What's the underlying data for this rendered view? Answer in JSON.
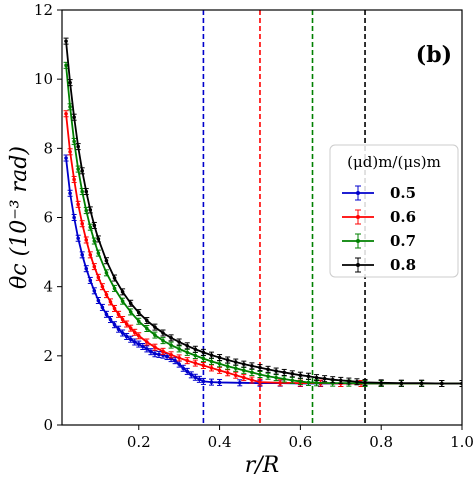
{
  "chart_data": {
    "type": "line",
    "panel_label": "(b)",
    "xlabel": "r/R",
    "ylabel": "θc (10⁻³ rad)",
    "xlim": [
      0.01,
      1.0
    ],
    "ylim": [
      0,
      12
    ],
    "x_ticks": [
      0.2,
      0.4,
      0.6,
      0.8,
      1.0
    ],
    "x_tick_labels": [
      "0.2",
      "0.4",
      "0.6",
      "0.8",
      "1.0"
    ],
    "y_ticks": [
      0,
      2,
      4,
      6,
      8,
      10,
      12
    ],
    "y_tick_labels": [
      "0",
      "2",
      "4",
      "6",
      "8",
      "10",
      "12"
    ],
    "legend": {
      "title": "(μd)m/(μs)m",
      "placement": "center-right"
    },
    "series": [
      {
        "name": "0.5",
        "color": "#0000cc",
        "x": [
          0.02,
          0.03,
          0.04,
          0.05,
          0.06,
          0.07,
          0.08,
          0.09,
          0.1,
          0.11,
          0.12,
          0.13,
          0.14,
          0.15,
          0.16,
          0.17,
          0.18,
          0.19,
          0.2,
          0.21,
          0.22,
          0.23,
          0.24,
          0.25,
          0.26,
          0.27,
          0.28,
          0.29,
          0.3,
          0.31,
          0.32,
          0.33,
          0.34,
          0.35,
          0.36,
          0.38,
          0.4,
          0.45,
          0.5,
          0.55,
          0.6,
          0.65,
          0.7,
          0.75,
          0.8,
          0.85,
          0.9,
          0.95,
          1.0
        ],
        "y": [
          7.72,
          6.7,
          6.0,
          5.4,
          4.92,
          4.52,
          4.18,
          3.88,
          3.6,
          3.4,
          3.2,
          3.05,
          2.9,
          2.77,
          2.66,
          2.56,
          2.48,
          2.4,
          2.34,
          2.27,
          2.2,
          2.12,
          2.06,
          2.04,
          2.02,
          1.98,
          1.92,
          1.86,
          1.76,
          1.64,
          1.55,
          1.45,
          1.38,
          1.32,
          1.26,
          1.24,
          1.23,
          1.22,
          1.21,
          1.21,
          1.2,
          1.2,
          1.2,
          1.2,
          1.2,
          1.2,
          1.2,
          1.2,
          1.2
        ]
      },
      {
        "name": "0.6",
        "color": "#ff0000",
        "x": [
          0.02,
          0.03,
          0.04,
          0.05,
          0.06,
          0.07,
          0.08,
          0.09,
          0.1,
          0.11,
          0.12,
          0.13,
          0.14,
          0.15,
          0.16,
          0.17,
          0.18,
          0.19,
          0.2,
          0.22,
          0.24,
          0.26,
          0.28,
          0.3,
          0.32,
          0.34,
          0.36,
          0.38,
          0.4,
          0.42,
          0.44,
          0.46,
          0.48,
          0.5,
          0.55,
          0.6,
          0.65,
          0.7,
          0.75,
          0.8,
          0.85,
          0.9,
          0.95,
          1.0
        ],
        "y": [
          9.0,
          7.9,
          7.1,
          6.38,
          5.82,
          5.35,
          4.92,
          4.58,
          4.27,
          4.0,
          3.77,
          3.56,
          3.37,
          3.2,
          3.05,
          2.92,
          2.8,
          2.68,
          2.58,
          2.4,
          2.25,
          2.13,
          2.03,
          1.94,
          1.86,
          1.79,
          1.72,
          1.65,
          1.58,
          1.51,
          1.44,
          1.37,
          1.3,
          1.24,
          1.22,
          1.21,
          1.21,
          1.2,
          1.2,
          1.2,
          1.2,
          1.2,
          1.2,
          1.2
        ]
      },
      {
        "name": "0.7",
        "color": "#008000",
        "x": [
          0.02,
          0.03,
          0.04,
          0.05,
          0.06,
          0.07,
          0.08,
          0.09,
          0.1,
          0.12,
          0.14,
          0.16,
          0.18,
          0.2,
          0.22,
          0.24,
          0.26,
          0.28,
          0.3,
          0.32,
          0.34,
          0.36,
          0.38,
          0.4,
          0.42,
          0.44,
          0.46,
          0.48,
          0.5,
          0.52,
          0.54,
          0.56,
          0.58,
          0.6,
          0.62,
          0.64,
          0.68,
          0.72,
          0.76,
          0.8,
          0.85,
          0.9,
          0.95,
          1.0
        ],
        "y": [
          10.4,
          9.2,
          8.2,
          7.4,
          6.75,
          6.2,
          5.72,
          5.32,
          4.97,
          4.4,
          3.95,
          3.58,
          3.27,
          3.0,
          2.79,
          2.6,
          2.44,
          2.31,
          2.2,
          2.1,
          2.01,
          1.92,
          1.84,
          1.77,
          1.7,
          1.64,
          1.58,
          1.52,
          1.46,
          1.41,
          1.37,
          1.33,
          1.29,
          1.26,
          1.23,
          1.22,
          1.21,
          1.21,
          1.2,
          1.2,
          1.2,
          1.2,
          1.2,
          1.2
        ]
      },
      {
        "name": "0.8",
        "color": "#000000",
        "x": [
          0.02,
          0.03,
          0.04,
          0.05,
          0.06,
          0.07,
          0.08,
          0.09,
          0.1,
          0.12,
          0.14,
          0.16,
          0.18,
          0.2,
          0.22,
          0.24,
          0.26,
          0.28,
          0.3,
          0.32,
          0.34,
          0.36,
          0.38,
          0.4,
          0.42,
          0.44,
          0.46,
          0.48,
          0.5,
          0.52,
          0.54,
          0.56,
          0.58,
          0.6,
          0.62,
          0.64,
          0.66,
          0.68,
          0.7,
          0.72,
          0.74,
          0.76,
          0.8,
          0.85,
          0.9,
          0.95,
          1.0
        ],
        "y": [
          11.1,
          9.9,
          8.9,
          8.05,
          7.35,
          6.75,
          6.22,
          5.77,
          5.38,
          4.75,
          4.25,
          3.85,
          3.52,
          3.25,
          3.02,
          2.83,
          2.66,
          2.52,
          2.4,
          2.29,
          2.19,
          2.1,
          2.02,
          1.95,
          1.88,
          1.82,
          1.76,
          1.71,
          1.66,
          1.61,
          1.56,
          1.52,
          1.48,
          1.44,
          1.41,
          1.37,
          1.34,
          1.31,
          1.29,
          1.27,
          1.25,
          1.23,
          1.22,
          1.21,
          1.21,
          1.2,
          1.2
        ]
      }
    ],
    "vertical_lines": [
      {
        "x": 0.36,
        "color": "#0000cc",
        "style": "dashed"
      },
      {
        "x": 0.5,
        "color": "#ff0000",
        "style": "dashed"
      },
      {
        "x": 0.63,
        "color": "#008000",
        "style": "dashed"
      },
      {
        "x": 0.76,
        "color": "#000000",
        "style": "dashed"
      }
    ]
  }
}
